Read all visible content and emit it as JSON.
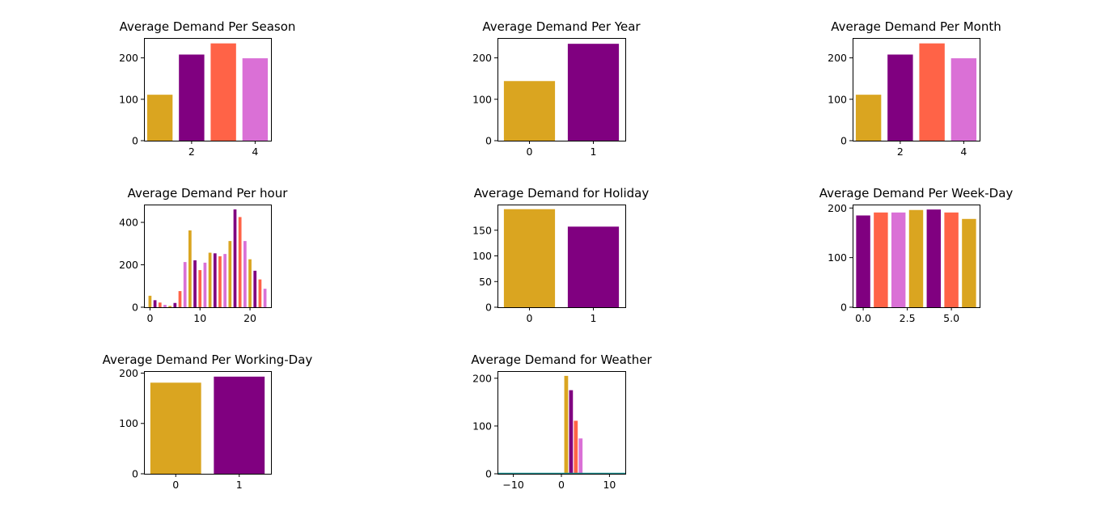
{
  "colors": {
    "goldenrod": "#DAA520",
    "purple": "#800080",
    "tomato": "#FF6347",
    "orchid": "#DA70D6",
    "teal": "#1f8f8f"
  },
  "chart_data": [
    {
      "type": "bar",
      "title": "Average Demand Per Season",
      "x": [
        1,
        2,
        3,
        4
      ],
      "values": [
        111,
        208,
        235,
        199
      ],
      "xlim": [
        0.5,
        4.5
      ],
      "ylim": [
        0,
        248
      ],
      "xticks": [
        2,
        4
      ],
      "xtick_labels": [
        "2",
        "4"
      ],
      "yticks": [
        0,
        100,
        200
      ],
      "ytick_labels": [
        "0",
        "100",
        "200"
      ],
      "bar_width": 0.8,
      "bar_colors": [
        "#DAA520",
        "#800080",
        "#FF6347",
        "#DA70D6"
      ]
    },
    {
      "type": "bar",
      "title": "Average Demand Per Year",
      "x": [
        0,
        1
      ],
      "values": [
        144,
        234
      ],
      "xlim": [
        -0.5,
        1.5
      ],
      "ylim": [
        0,
        248
      ],
      "xticks": [
        0,
        1
      ],
      "xtick_labels": [
        "0",
        "1"
      ],
      "yticks": [
        0,
        100,
        200
      ],
      "ytick_labels": [
        "0",
        "100",
        "200"
      ],
      "bar_width": 0.8,
      "bar_colors": [
        "#DAA520",
        "#800080"
      ]
    },
    {
      "type": "bar",
      "title": "Average Demand Per Month",
      "x": [
        1,
        2,
        3,
        4
      ],
      "values": [
        111,
        208,
        235,
        199
      ],
      "xlim": [
        0.5,
        4.5
      ],
      "ylim": [
        0,
        248
      ],
      "xticks": [
        2,
        4
      ],
      "xtick_labels": [
        "2",
        "4"
      ],
      "yticks": [
        0,
        100,
        200
      ],
      "ytick_labels": [
        "0",
        "100",
        "200"
      ],
      "bar_width": 0.8,
      "bar_colors": [
        "#DAA520",
        "#800080",
        "#FF6347",
        "#DA70D6"
      ]
    },
    {
      "type": "bar",
      "title": "Average Demand Per hour",
      "x": [
        0,
        1,
        2,
        3,
        4,
        5,
        6,
        7,
        8,
        9,
        10,
        11,
        12,
        13,
        14,
        15,
        16,
        17,
        18,
        19,
        20,
        21,
        22,
        23
      ],
      "values": [
        54,
        33,
        22,
        11,
        6,
        20,
        76,
        213,
        362,
        221,
        175,
        210,
        257,
        254,
        240,
        251,
        312,
        461,
        425,
        312,
        226,
        172,
        131,
        87
      ],
      "xlim": [
        -1.2,
        24.2
      ],
      "ylim": [
        0,
        484
      ],
      "xticks": [
        0,
        10,
        20
      ],
      "xtick_labels": [
        "0",
        "10",
        "20"
      ],
      "yticks": [
        0,
        200,
        400
      ],
      "ytick_labels": [
        "0",
        "200",
        "400"
      ],
      "bar_width": 0.6,
      "bar_colors": [
        "#DAA520",
        "#800080",
        "#FF6347",
        "#DA70D6"
      ]
    },
    {
      "type": "bar",
      "title": "Average Demand for Holiday",
      "x": [
        0,
        1
      ],
      "values": [
        191,
        157
      ],
      "xlim": [
        -0.5,
        1.5
      ],
      "ylim": [
        0,
        200
      ],
      "xticks": [
        0,
        1
      ],
      "xtick_labels": [
        "0",
        "1"
      ],
      "yticks": [
        0,
        50,
        100,
        150
      ],
      "ytick_labels": [
        "0",
        "50",
        "100",
        "150"
      ],
      "bar_width": 0.8,
      "bar_colors": [
        "#DAA520",
        "#800080"
      ]
    },
    {
      "type": "bar",
      "title": "Average Demand Per Week-Day",
      "x": [
        0,
        1,
        2,
        3,
        4,
        5,
        6
      ],
      "values": [
        185,
        191,
        191,
        196,
        197,
        191,
        178
      ],
      "xlim": [
        -0.6,
        6.6
      ],
      "ylim": [
        0,
        207
      ],
      "xticks": [
        0,
        2.5,
        5
      ],
      "xtick_labels": [
        "0.0",
        "2.5",
        "5.0"
      ],
      "yticks": [
        0,
        100,
        200
      ],
      "ytick_labels": [
        "0",
        "100",
        "200"
      ],
      "bar_width": 0.8,
      "bar_colors": [
        "#800080",
        "#FF6347",
        "#DA70D6",
        "#DAA520",
        "#800080",
        "#FF6347",
        "#DAA520"
      ]
    },
    {
      "type": "bar",
      "title": "Average Demand Per Working-Day",
      "x": [
        0,
        1
      ],
      "values": [
        181,
        193
      ],
      "xlim": [
        -0.5,
        1.5
      ],
      "ylim": [
        0,
        204
      ],
      "xticks": [
        0,
        1
      ],
      "xtick_labels": [
        "0",
        "1"
      ],
      "yticks": [
        0,
        100,
        200
      ],
      "ytick_labels": [
        "0",
        "100",
        "200"
      ],
      "bar_width": 0.8,
      "bar_colors": [
        "#DAA520",
        "#800080"
      ]
    },
    {
      "type": "bar",
      "title": "Average Demand for Weather",
      "x": [
        1,
        2,
        3,
        4
      ],
      "values": [
        205,
        175,
        111,
        74
      ],
      "xlim": [
        -13.3,
        13.3
      ],
      "ylim": [
        0,
        215
      ],
      "xticks": [
        -10,
        0,
        10
      ],
      "xtick_labels": [
        "−10",
        "0",
        "10"
      ],
      "yticks": [
        0,
        100,
        200
      ],
      "ytick_labels": [
        "0",
        "100",
        "200"
      ],
      "bar_width": 0.8,
      "bar_colors": [
        "#DAA520",
        "#800080",
        "#FF6347",
        "#DA70D6"
      ],
      "baseline_line": {
        "x": [
          -13.3,
          13.3
        ],
        "y": [
          0,
          0
        ]
      }
    }
  ]
}
